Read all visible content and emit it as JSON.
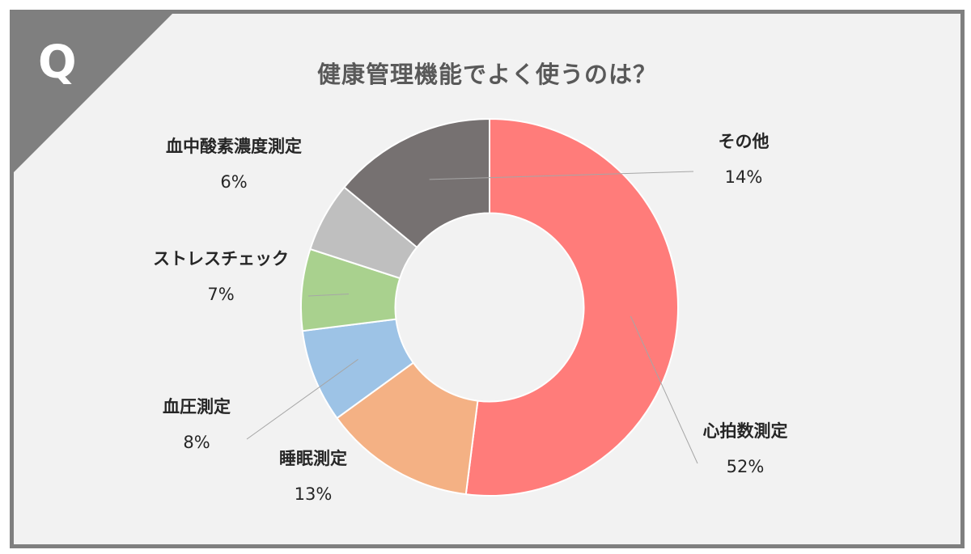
{
  "badge": "Q",
  "chart_data": {
    "type": "pie",
    "title": "健康管理機能でよく使うのは？",
    "unit": "%",
    "categories": [
      "心拍数測定",
      "睡眠測定",
      "血圧測定",
      "ストレスチェック",
      "血中酸素濃度測定",
      "その他"
    ],
    "values": [
      52,
      13,
      8,
      7,
      6,
      14
    ],
    "value_labels": [
      "52%",
      "13%",
      "8%",
      "7%",
      "6%",
      "14%"
    ],
    "colors": [
      "#ff7c7a",
      "#f4b184",
      "#9dc3e6",
      "#a9d18e",
      "#bfbfbf",
      "#767171"
    ],
    "inner_radius_ratio": 0.5,
    "legend": "none"
  },
  "colors": {
    "background": "#f2f2f2",
    "frame": "#7f7f7f",
    "title": "#595959",
    "label": "#262626",
    "leader": "#a6a6a6"
  }
}
